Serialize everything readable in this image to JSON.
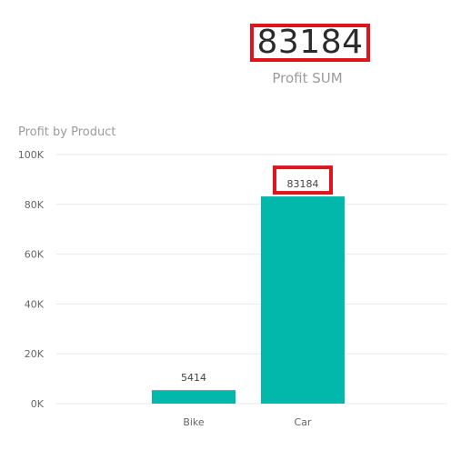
{
  "kpi": {
    "value": "83184",
    "label": "Profit SUM"
  },
  "chart_data": {
    "type": "bar",
    "title": "Profit by Product",
    "categories": [
      "Bike",
      "Car"
    ],
    "values": [
      5414,
      83184
    ],
    "data_labels": [
      "5414",
      "83184"
    ],
    "highlighted_label": "83184",
    "y_ticks": [
      0,
      20000,
      40000,
      60000,
      80000,
      100000
    ],
    "y_tick_labels": [
      "0K",
      "20K",
      "40K",
      "60K",
      "80K",
      "100K"
    ],
    "ylim": [
      0,
      100000
    ],
    "xlabel": "",
    "ylabel": "",
    "grid": true,
    "bar_color": "#01b8aa",
    "highlight_color": "#e0141e"
  }
}
